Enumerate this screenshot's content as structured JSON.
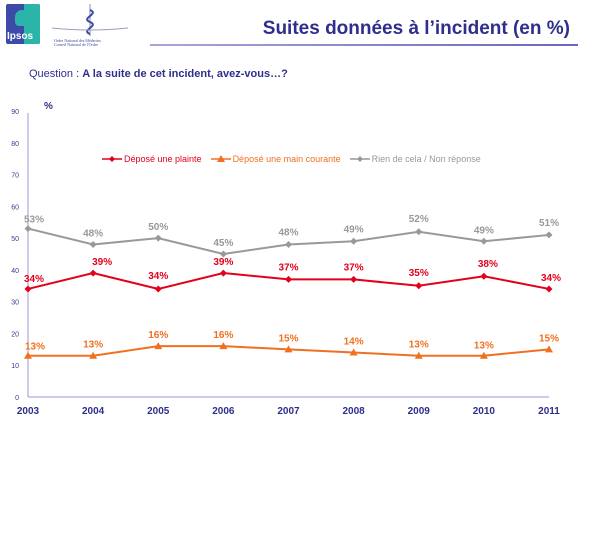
{
  "header": {
    "logos": [
      {
        "name": "Ipsos",
        "text": "Ipsos"
      },
      {
        "name": "Ordre National des Médecins",
        "line1": "Ordre National des Médecins",
        "line2": "Conseil National de l'Ordre"
      }
    ],
    "title": "Suites données à l’incident (en %)"
  },
  "question": {
    "prefix": "Question : ",
    "text": "A la suite de cet incident, avez-vous…?"
  },
  "colors": {
    "title": "#2e2e8c",
    "axis": "#9c98d6",
    "plainte": "#e3001b",
    "main_courante": "#f07020",
    "rien": "#999999"
  },
  "chart_data": {
    "type": "line",
    "title": "Suites données à l’incident (en %)",
    "xlabel": "",
    "ylabel": "%",
    "ylim": [
      0,
      90
    ],
    "yticks": [
      0,
      10,
      20,
      30,
      40,
      50,
      60,
      70,
      80,
      90
    ],
    "grid": false,
    "legend_position": "top",
    "x": [
      "2003",
      "2004",
      "2005",
      "2006",
      "2007",
      "2008",
      "2009",
      "2010",
      "2011"
    ],
    "series": [
      {
        "name": "Déposé une plainte",
        "marker": "diamond",
        "color": "#e3001b",
        "values": [
          34,
          39,
          34,
          39,
          37,
          37,
          35,
          38,
          34
        ],
        "labels": [
          "34%",
          "39%",
          "34%",
          "39%",
          "37%",
          "37%",
          "35%",
          "38%",
          "34%"
        ]
      },
      {
        "name": "Déposé une main courante",
        "marker": "triangle",
        "color": "#f07020",
        "values": [
          13,
          13,
          16,
          16,
          15,
          14,
          13,
          13,
          15
        ],
        "labels": [
          "13%",
          "13%",
          "16%",
          "16%",
          "15%",
          "14%",
          "13%",
          "13%",
          "15%"
        ]
      },
      {
        "name": "Rien de cela / Non réponse",
        "marker": "diamond",
        "color": "#999999",
        "values": [
          53,
          48,
          50,
          45,
          48,
          49,
          52,
          49,
          51
        ],
        "labels": [
          "53%",
          "48%",
          "50%",
          "45%",
          "48%",
          "49%",
          "52%",
          "49%",
          "51%"
        ]
      }
    ]
  }
}
